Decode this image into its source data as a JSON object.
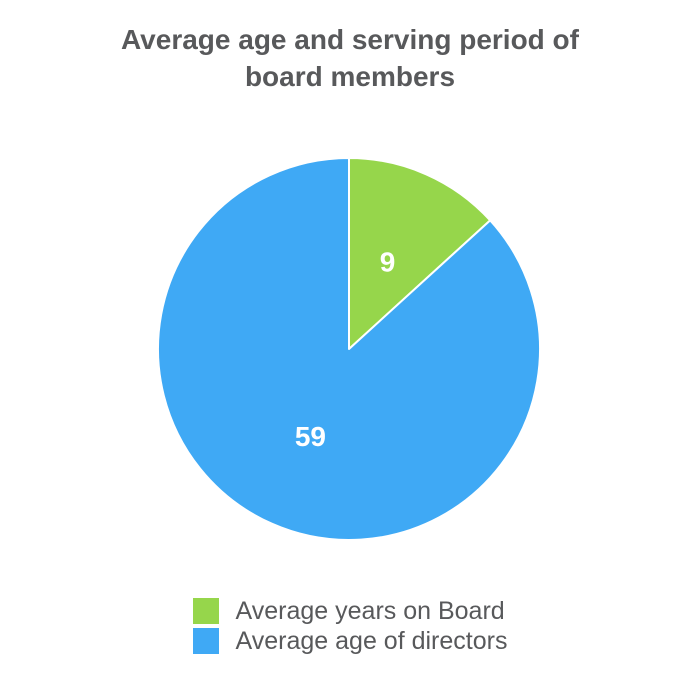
{
  "page": {
    "background": "#FFFFFF"
  },
  "title": {
    "line1": "Average age and serving period of",
    "line2": "board members",
    "color": "#58595B"
  },
  "chart_data": {
    "type": "pie",
    "title": "Average age and serving period of board members",
    "series": [
      {
        "label": "Average years on Board",
        "value": 9,
        "color": "#96D64B"
      },
      {
        "label": "Average age of directors",
        "value": 59,
        "color": "#3FA9F5"
      }
    ],
    "start_angle_deg": 0,
    "direction": "clockwise",
    "slice_label_color": "#FFFFFF",
    "slice_border_color": "#FFFFFF",
    "legend_position": "bottom",
    "legend_text_color": "#58595B"
  }
}
